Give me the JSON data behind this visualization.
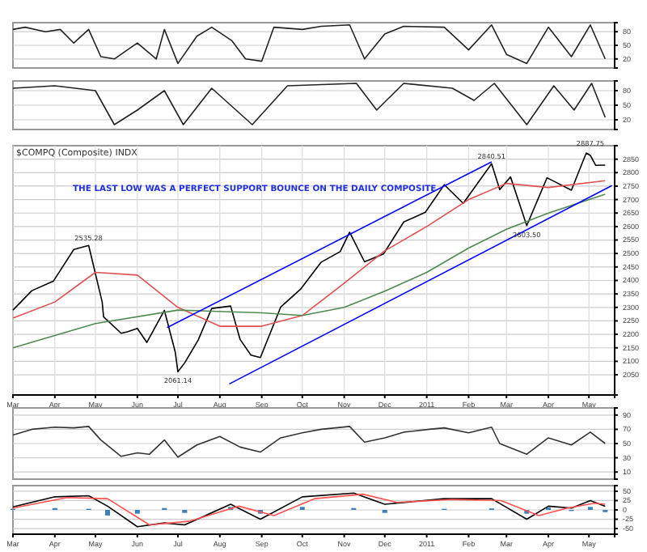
{
  "chart_data": [
    {
      "type": "line",
      "xlim": [
        "2010-03-01",
        "2011-05-20"
      ],
      "ylim": [
        0,
        100
      ],
      "yticks": [
        20,
        50,
        80
      ],
      "grid": "y",
      "tick_labels": "y",
      "series": [
        {
          "color": "#222222",
          "x": [
            "2010-03-01",
            "2010-03-10",
            "2010-03-25",
            "2010-04-05",
            "2010-04-15",
            "2010-04-26",
            "2010-05-05",
            "2010-05-15",
            "2010-06-01",
            "2010-06-15",
            "2010-06-21",
            "2010-07-01",
            "2010-07-15",
            "2010-07-26",
            "2010-08-10",
            "2010-08-20",
            "2010-09-01",
            "2010-09-10",
            "2010-10-01",
            "2010-10-15",
            "2010-11-05",
            "2010-11-16",
            "2010-12-01",
            "2010-12-15",
            "2011-01-14",
            "2011-02-01",
            "2011-02-18",
            "2011-03-01",
            "2011-03-16",
            "2011-04-01",
            "2011-04-18",
            "2011-05-02",
            "2011-05-13"
          ],
          "values": [
            85,
            90,
            80,
            85,
            55,
            85,
            25,
            20,
            55,
            20,
            85,
            10,
            70,
            90,
            60,
            20,
            15,
            90,
            85,
            92,
            95,
            20,
            75,
            92,
            90,
            40,
            95,
            30,
            10,
            90,
            25,
            95,
            20
          ]
        }
      ]
    },
    {
      "type": "line",
      "xlim": [
        "2010-03-01",
        "2011-05-20"
      ],
      "ylim": [
        0,
        100
      ],
      "yticks": [
        20,
        50,
        80
      ],
      "grid": "y",
      "tick_labels": "y",
      "series": [
        {
          "color": "#222222",
          "x": [
            "2010-03-01",
            "2010-04-01",
            "2010-05-01",
            "2010-05-15",
            "2010-06-01",
            "2010-06-21",
            "2010-07-05",
            "2010-07-26",
            "2010-08-25",
            "2010-09-20",
            "2010-11-10",
            "2010-11-25",
            "2010-12-15",
            "2011-01-20",
            "2011-02-05",
            "2011-02-20",
            "2011-03-16",
            "2011-04-05",
            "2011-04-20",
            "2011-05-03",
            "2011-05-13"
          ],
          "values": [
            85,
            90,
            80,
            10,
            40,
            80,
            10,
            85,
            10,
            90,
            95,
            40,
            95,
            85,
            60,
            95,
            10,
            90,
            40,
            95,
            25
          ]
        }
      ]
    },
    {
      "type": "line",
      "title": "$COMPQ (Composite) INDX",
      "xlim": [
        "2010-03-01",
        "2011-05-20"
      ],
      "ylim": [
        1975,
        2900
      ],
      "yticks": [
        2050,
        2100,
        2150,
        2200,
        2250,
        2300,
        2350,
        2400,
        2450,
        2500,
        2550,
        2600,
        2650,
        2700,
        2750,
        2800,
        2850
      ],
      "xticks": [
        {
          "value": "2010-03-01",
          "label": "Mar"
        },
        {
          "value": "2010-04-01",
          "label": "Apr"
        },
        {
          "value": "2010-05-01",
          "label": "May"
        },
        {
          "value": "2010-06-01",
          "label": "Jun"
        },
        {
          "value": "2010-07-01",
          "label": "Jul"
        },
        {
          "value": "2010-08-01",
          "label": "Aug"
        },
        {
          "value": "2010-09-01",
          "label": "Sep"
        },
        {
          "value": "2010-10-01",
          "label": "Oct"
        },
        {
          "value": "2010-11-01",
          "label": "Nov"
        },
        {
          "value": "2010-12-01",
          "label": "Dec"
        },
        {
          "value": "2011-01-01",
          "label": "2011"
        },
        {
          "value": "2011-02-01",
          "label": "Feb"
        },
        {
          "value": "2011-03-01",
          "label": "Mar"
        },
        {
          "value": "2011-04-01",
          "label": "Apr"
        },
        {
          "value": "2011-05-01",
          "label": "May"
        }
      ],
      "grid": true,
      "annotations": [
        "THE LAST LOW WAS A PERFECT SUPPORT BOUNCE ON THE DAILY COMPOSITE",
        {
          "text": "2535.28",
          "x": "2010-04-26",
          "y": 2535.28
        },
        {
          "text": "2061.14",
          "x": "2010-07-01",
          "y": 2061.14
        },
        {
          "text": "2840.51",
          "x": "2011-02-18",
          "y": 2840.51
        },
        {
          "text": "2603.50",
          "x": "2011-03-16",
          "y": 2603.5
        },
        {
          "text": "2887.75",
          "x": "2011-05-02",
          "y": 2887.75
        }
      ],
      "series": [
        {
          "color": "#000000",
          "x": [
            "2010-03-01",
            "2010-03-15",
            "2010-03-31",
            "2010-04-15",
            "2010-04-26",
            "2010-05-06",
            "2010-05-07",
            "2010-05-20",
            "2010-05-25",
            "2010-06-01",
            "2010-06-08",
            "2010-06-21",
            "2010-06-29",
            "2010-07-01",
            "2010-07-06",
            "2010-07-16",
            "2010-07-26",
            "2010-08-09",
            "2010-08-16",
            "2010-08-24",
            "2010-08-31",
            "2010-09-15",
            "2010-09-30",
            "2010-10-15",
            "2010-10-29",
            "2010-11-05",
            "2010-11-16",
            "2010-11-30",
            "2010-12-15",
            "2010-12-31",
            "2011-01-14",
            "2011-01-28",
            "2011-02-18",
            "2011-02-24",
            "2011-03-04",
            "2011-03-16",
            "2011-03-31",
            "2011-04-18",
            "2011-04-29",
            "2011-05-02",
            "2011-05-06",
            "2011-05-13"
          ],
          "values": [
            2290,
            2362,
            2398,
            2515,
            2530,
            2320,
            2265,
            2204,
            2210,
            2222,
            2170,
            2289,
            2135,
            2061.14,
            2094,
            2179,
            2296,
            2305,
            2181,
            2123,
            2114,
            2301,
            2369,
            2468,
            2507,
            2579,
            2469,
            2498,
            2617,
            2653,
            2755,
            2686,
            2833,
            2737,
            2784,
            2603.5,
            2781,
            2735,
            2873,
            2864,
            2827,
            2828
          ]
        },
        {
          "color": "#e05050",
          "x": [
            "2010-03-01",
            "2010-04-01",
            "2010-05-01",
            "2010-06-01",
            "2010-07-01",
            "2010-08-01",
            "2010-09-01",
            "2010-10-01",
            "2010-11-01",
            "2010-12-01",
            "2011-01-01",
            "2011-02-01",
            "2011-03-01",
            "2011-04-01",
            "2011-05-13"
          ],
          "values": [
            2260,
            2320,
            2430,
            2420,
            2300,
            2230,
            2230,
            2270,
            2390,
            2510,
            2600,
            2700,
            2760,
            2745,
            2770
          ]
        },
        {
          "color": "#4f8a4f",
          "x": [
            "2010-03-01",
            "2010-05-01",
            "2010-07-01",
            "2010-09-01",
            "2010-10-01",
            "2010-11-01",
            "2010-12-01",
            "2011-01-01",
            "2011-02-01",
            "2011-03-01",
            "2011-04-01",
            "2011-05-13"
          ],
          "values": [
            2150,
            2240,
            2290,
            2280,
            2270,
            2300,
            2360,
            2430,
            2520,
            2590,
            2650,
            2720
          ]
        },
        {
          "color": "#0000ff",
          "x": [
            "2010-06-23",
            "2011-02-18"
          ],
          "values": [
            2225,
            2840
          ]
        },
        {
          "color": "#0000ff",
          "x": [
            "2010-08-08",
            "2011-05-18"
          ],
          "values": [
            2016,
            2752
          ]
        }
      ]
    },
    {
      "type": "line",
      "xlim": [
        "2010-03-01",
        "2011-05-20"
      ],
      "ylim": [
        0,
        100
      ],
      "yticks": [
        10,
        30,
        50,
        70,
        90
      ],
      "grid": "y",
      "tick_labels": "y",
      "series": [
        {
          "color": "#333333",
          "x": [
            "2010-03-01",
            "2010-03-15",
            "2010-04-01",
            "2010-04-15",
            "2010-04-26",
            "2010-05-05",
            "2010-05-20",
            "2010-06-01",
            "2010-06-10",
            "2010-06-21",
            "2010-07-01",
            "2010-07-15",
            "2010-08-01",
            "2010-08-16",
            "2010-08-31",
            "2010-09-15",
            "2010-10-01",
            "2010-10-15",
            "2010-11-05",
            "2010-11-16",
            "2010-12-01",
            "2010-12-15",
            "2011-01-03",
            "2011-01-14",
            "2011-02-01",
            "2011-02-18",
            "2011-02-24",
            "2011-03-16",
            "2011-04-01",
            "2011-04-18",
            "2011-05-02",
            "2011-05-13"
          ],
          "values": [
            62,
            70,
            73,
            72,
            74,
            55,
            32,
            37,
            35,
            55,
            31,
            48,
            60,
            45,
            38,
            58,
            65,
            70,
            74,
            52,
            58,
            66,
            70,
            72,
            65,
            73,
            50,
            35,
            58,
            48,
            66,
            50
          ]
        }
      ]
    },
    {
      "type": "line",
      "xlim": [
        "2010-03-01",
        "2011-05-20"
      ],
      "ylim": [
        -65,
        65
      ],
      "yticks": [
        -50,
        -25,
        0,
        25,
        50
      ],
      "grid": "y",
      "xticks": [
        {
          "value": "2010-03-01",
          "label": "Mar"
        },
        {
          "value": "2010-04-01",
          "label": "Apr"
        },
        {
          "value": "2010-05-01",
          "label": "May"
        },
        {
          "value": "2010-06-01",
          "label": "Jun"
        },
        {
          "value": "2010-07-01",
          "label": "Jul"
        },
        {
          "value": "2010-08-01",
          "label": "Aug"
        },
        {
          "value": "2010-09-01",
          "label": "Sep"
        },
        {
          "value": "2010-10-01",
          "label": "Oct"
        },
        {
          "value": "2010-11-01",
          "label": "Nov"
        },
        {
          "value": "2010-12-01",
          "label": "Dec"
        },
        {
          "value": "2011-01-01",
          "label": "2011"
        },
        {
          "value": "2011-02-01",
          "label": "Feb"
        },
        {
          "value": "2011-03-01",
          "label": "Mar"
        },
        {
          "value": "2011-04-01",
          "label": "Apr"
        },
        {
          "value": "2011-05-01",
          "label": "May"
        }
      ],
      "series": [
        {
          "type": "bar",
          "color": "#3a7fb5",
          "x": [
            "2010-03-01",
            "2010-04-01",
            "2010-04-26",
            "2010-05-10",
            "2010-06-01",
            "2010-06-21",
            "2010-07-06",
            "2010-08-09",
            "2010-08-31",
            "2010-10-01",
            "2010-11-08",
            "2010-12-01",
            "2011-01-14",
            "2011-02-18",
            "2011-03-16",
            "2011-04-01",
            "2011-04-18",
            "2011-05-02",
            "2011-05-13"
          ],
          "values": [
            3,
            5,
            3,
            -15,
            -10,
            5,
            -8,
            8,
            -10,
            8,
            5,
            -8,
            3,
            4,
            -10,
            6,
            -3,
            8,
            -6
          ]
        },
        {
          "color": "#000000",
          "x": [
            "2010-03-01",
            "2010-04-01",
            "2010-04-26",
            "2010-05-10",
            "2010-06-01",
            "2010-06-21",
            "2010-07-06",
            "2010-08-09",
            "2010-08-31",
            "2010-10-01",
            "2010-11-08",
            "2010-12-01",
            "2011-01-14",
            "2011-02-18",
            "2011-03-16",
            "2011-04-01",
            "2011-04-18",
            "2011-05-02",
            "2011-05-13"
          ],
          "values": [
            8,
            35,
            38,
            10,
            -45,
            -35,
            -40,
            15,
            -25,
            35,
            45,
            15,
            30,
            30,
            -25,
            10,
            5,
            25,
            10
          ]
        },
        {
          "color": "#ff5050",
          "x": [
            "2010-03-01",
            "2010-04-10",
            "2010-05-10",
            "2010-06-10",
            "2010-07-10",
            "2010-08-15",
            "2010-09-10",
            "2010-10-10",
            "2010-11-15",
            "2010-12-10",
            "2011-01-20",
            "2011-02-25",
            "2011-03-25",
            "2011-04-15",
            "2011-05-05",
            "2011-05-13"
          ],
          "values": [
            5,
            33,
            30,
            -40,
            -30,
            10,
            -15,
            30,
            42,
            20,
            28,
            25,
            -15,
            5,
            18,
            15
          ]
        }
      ]
    }
  ]
}
